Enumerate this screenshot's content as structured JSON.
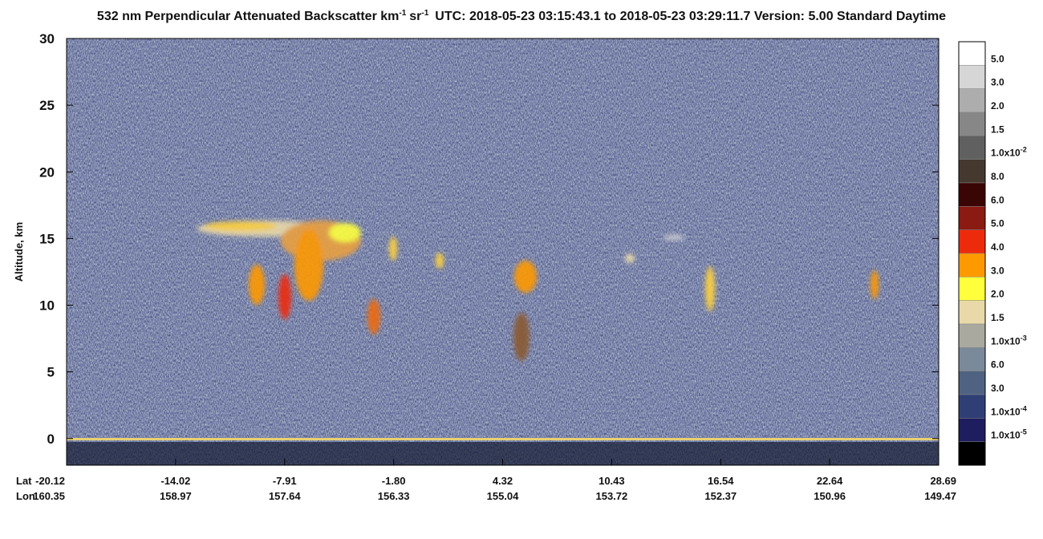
{
  "chart_data": {
    "type": "heatmap",
    "title": [
      "532 nm Perpendicular Attenuated Backscatter km",
      "-1",
      "sr",
      "-1",
      "UTC: 2018-05-23 03:15:43.1 to 2018-05-23 03:29:11.7  Version: 5.00 Standard Daytime"
    ],
    "ylabel": "Altitude, km",
    "ylim": [
      -2,
      30
    ],
    "yticks": [
      0,
      5,
      10,
      15,
      20,
      25,
      30
    ],
    "x_rows": [
      {
        "name": "Lat",
        "ticks": [
          -20.12,
          -14.02,
          -7.91,
          {
            "value": -1.8,
            "label": "-1.80"
          },
          4.32,
          10.43,
          16.54,
          22.64,
          28.69
        ]
      },
      {
        "name": "Lon",
        "ticks": [
          160.35,
          158.97,
          157.64,
          156.33,
          155.04,
          153.72,
          152.37,
          150.96,
          149.47
        ]
      }
    ],
    "colorbar": [
      {
        "value": 0.05,
        "label": "5.0",
        "color": "#ffffff"
      },
      {
        "value": 0.03,
        "label": "3.0",
        "color": "#d6d6d6"
      },
      {
        "value": 0.02,
        "label": "2.0",
        "color": "#adadad"
      },
      {
        "value": 0.015,
        "label": "1.5",
        "color": "#878787"
      },
      {
        "value": 0.01,
        "label": "1.0x10",
        "sup": "-2",
        "color": "#606060"
      },
      {
        "value": 0.008,
        "label": "8.0",
        "color": "#45382f"
      },
      {
        "value": 0.006,
        "label": "6.0",
        "color": "#3a0505"
      },
      {
        "value": 0.005,
        "label": "5.0",
        "color": "#8a1a12"
      },
      {
        "value": 0.004,
        "label": "4.0",
        "color": "#ee2a0c"
      },
      {
        "value": 0.003,
        "label": "3.0",
        "color": "#ff9900"
      },
      {
        "value": 0.002,
        "label": "2.0",
        "color": "#ffff3c"
      },
      {
        "value": 0.0015,
        "label": "1.5",
        "color": "#e9d9a9"
      },
      {
        "value": 0.001,
        "label": "1.0x10",
        "sup": "-3",
        "color": "#a9a9a0"
      },
      {
        "value": 0.0006,
        "label": "6.0",
        "color": "#7a8a9a"
      },
      {
        "value": 0.0003,
        "label": "3.0",
        "color": "#4f6282"
      },
      {
        "value": 0.0001,
        "label": "1.0x10",
        "sup": "-4",
        "color": "#2f3f75"
      },
      {
        "value": 1e-05,
        "label": "1.0x10",
        "sup": "-5",
        "color": "#1d1d60"
      },
      {
        "color": "#000000"
      }
    ]
  }
}
